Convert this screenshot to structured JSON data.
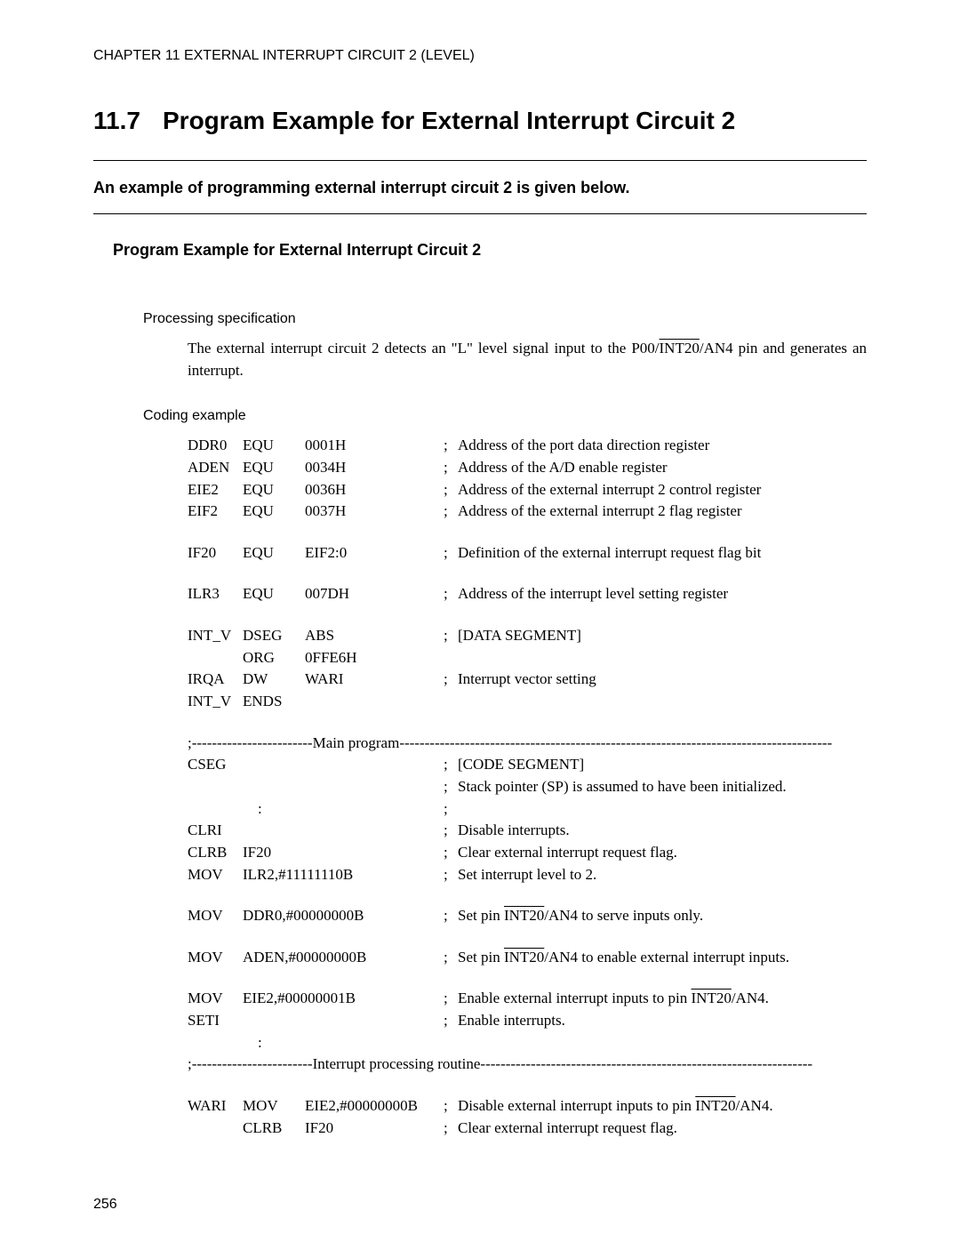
{
  "header": {
    "chapter": "CHAPTER 11  EXTERNAL INTERRUPT CIRCUIT 2 (LEVEL)",
    "section_number": "11.7",
    "section_title": "Program Example for External Interrupt Circuit 2",
    "intro": "An example of programming external interrupt circuit 2 is given below.",
    "subsection": "Program Example for External Interrupt Circuit 2"
  },
  "processing": {
    "label": "Processing specification",
    "body_before": "The external interrupt circuit 2 detects an \"L\" level signal input to the P00/",
    "int20": "INT20",
    "body_after": "/AN4 pin and generates an interrupt."
  },
  "coding": {
    "label": "Coding example",
    "rows": [
      {
        "l": "DDR0",
        "op": "EQU",
        "oper": "0001H",
        "c": "Address of the port data direction register"
      },
      {
        "l": "ADEN",
        "op": "EQU",
        "oper": "0034H",
        "c": "Address of the A/D enable register"
      },
      {
        "l": "EIE2",
        "op": "EQU",
        "oper": "0036H",
        "c": "Address of the external interrupt 2 control register"
      },
      {
        "l": "EIF2",
        "op": "EQU",
        "oper": "0037H",
        "c": "Address of the external interrupt 2 flag register"
      },
      {
        "gap": true
      },
      {
        "l": "IF20",
        "op": "EQU",
        "oper": "EIF2:0",
        "c": "Definition of the external interrupt request flag bit"
      },
      {
        "gap": true
      },
      {
        "l": "ILR3",
        "op": "EQU",
        "oper": "007DH",
        "c": "Address of the interrupt level setting register"
      },
      {
        "gap": true
      },
      {
        "l": "INT_V",
        "op": "DSEG",
        "oper": "ABS",
        "c": "[DATA SEGMENT]"
      },
      {
        "l": "",
        "op": "ORG",
        "oper": "0FFE6H",
        "c": ""
      },
      {
        "l": "IRQA",
        "op": "DW",
        "oper": "WARI",
        "c": "Interrupt vector setting"
      },
      {
        "l": "INT_V",
        "op": "ENDS",
        "oper": "",
        "c": ""
      },
      {
        "gap": true
      },
      {
        "divider": "main",
        "text": ";------------------------Main program--------------------------------------------------------------------------------------"
      },
      {
        "l": "CSEG",
        "op": "",
        "oper": "",
        "c": "[CODE SEGMENT]"
      },
      {
        "l": "",
        "op": "",
        "oper": "",
        "c": "Stack pointer (SP) is assumed to have been initialized."
      },
      {
        "colon": true
      },
      {
        "l": "CLRI",
        "op": "",
        "oper": "",
        "c": "Disable interrupts."
      },
      {
        "l": "CLRB",
        "op": "IF20",
        "oper": "",
        "c": "Clear external interrupt request flag."
      },
      {
        "l": "MOV",
        "op": "ILR2,#11111110B",
        "oper": "",
        "c": "Set interrupt level to 2.",
        "wide": true
      },
      {
        "gap": true
      },
      {
        "l": "MOV",
        "op": "DDR0,#00000000B",
        "oper": "",
        "c_int20_pre": "Set pin ",
        "c_int20_post": "/AN4 to serve inputs only.",
        "wide": true,
        "int20": true
      },
      {
        "gap": true
      },
      {
        "l": "MOV",
        "op": "ADEN,#00000000B",
        "oper": "",
        "c_int20_pre": "Set pin ",
        "c_int20_post": "/AN4 to enable external interrupt inputs.",
        "wide": true,
        "int20": true
      },
      {
        "gap": true
      },
      {
        "l": "MOV",
        "op": "EIE2,#00000001B",
        "oper": "",
        "c_int20_pre": "Enable external interrupt inputs to pin ",
        "c_int20_post": "/AN4.",
        "wide": true,
        "int20": true
      },
      {
        "l": "SETI",
        "op": "",
        "oper": "",
        "c": "Enable interrupts."
      },
      {
        "colon_nosemi": true
      },
      {
        "divider": "irq",
        "text": ";------------------------Interrupt processing routine------------------------------------------------------------------"
      },
      {
        "gap": true
      },
      {
        "l": "WARI",
        "op": "MOV",
        "oper": "EIE2,#00000000B",
        "c_int20_pre": "Disable external interrupt inputs to pin ",
        "c_int20_post": "/AN4.",
        "int20": true
      },
      {
        "l": "",
        "op": "CLRB",
        "oper": "IF20",
        "c": "Clear external interrupt request flag."
      }
    ]
  },
  "int20_label": "INT20",
  "page_number": "256"
}
